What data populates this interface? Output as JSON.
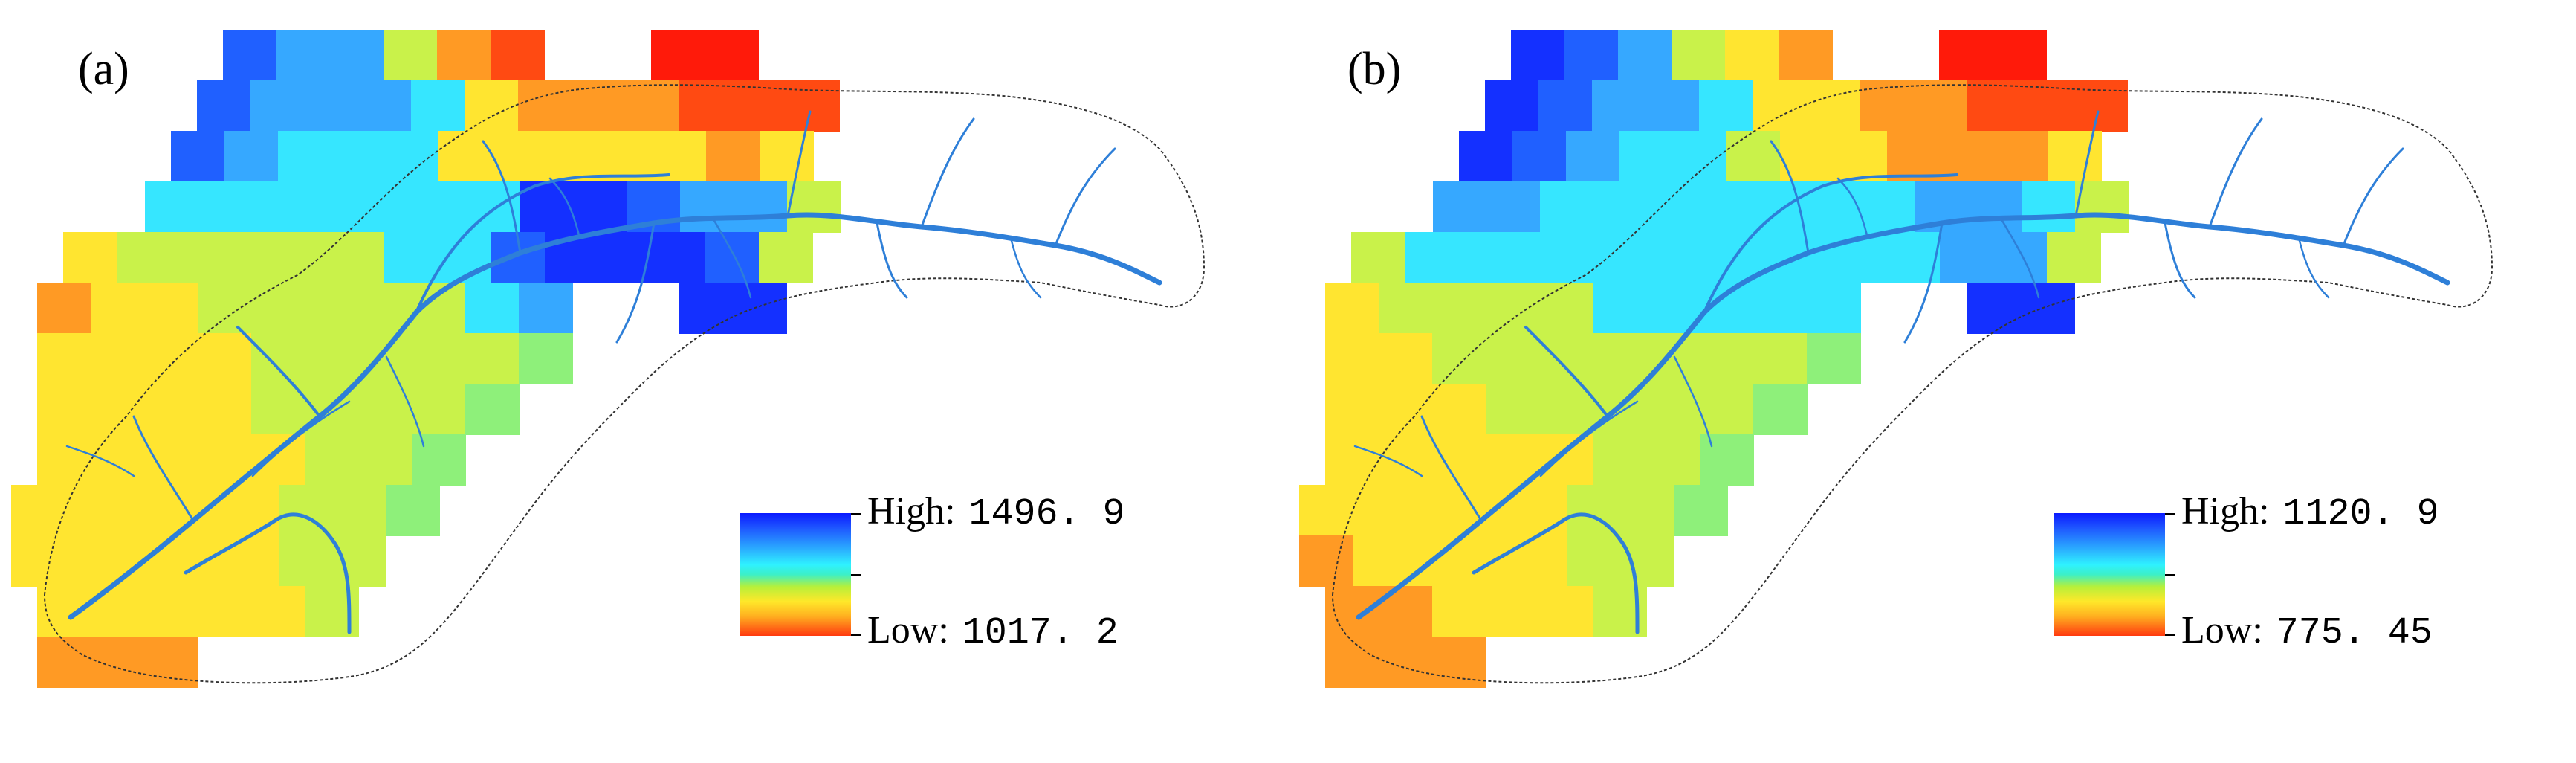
{
  "panels": [
    {
      "label": "(a)",
      "legend": {
        "high_label": "High:",
        "high_value": "1496. 9",
        "low_label": "Low:",
        "low_value": "1017. 2"
      },
      "colors": {
        "r0": [
          "blue2",
          "blue3",
          "blue3",
          "ylgn",
          "orng",
          "red1",
          "",
          "",
          "red",
          "red"
        ],
        "r1": [
          "blue2",
          "blue3",
          "blue3",
          "blue3",
          "cyan",
          "yel",
          "orng",
          "orng",
          "orng",
          "red1",
          "red1",
          "red1"
        ],
        "r2": [
          "blue2",
          "blue3",
          "cyan",
          "cyan",
          "cyan",
          "yel",
          "yel",
          "yel",
          "yel",
          "yel",
          "orng",
          "yel"
        ],
        "r3": [
          "cyan",
          "cyan",
          "cyan",
          "cyan",
          "cyan",
          "cyan",
          "cyan",
          "blue1",
          "blue1",
          "blue2",
          "blue3",
          "blue3",
          "ylgn"
        ],
        "r4": [
          "yel",
          "ylgn",
          "ylgn",
          "ylgn",
          "ylgn",
          "ylgn",
          "cyan",
          "cyan",
          "blue2",
          "blue1",
          "blue1",
          "blue1",
          "blue2",
          "ylgn"
        ],
        "r5": [
          "orng",
          "yel",
          "yel",
          "ylgn",
          "ylgn",
          "ylgn",
          "ylgn",
          "ylgn",
          "cyan",
          "blue3",
          "",
          "",
          "blue1",
          "blue1"
        ],
        "r6": [
          "yel",
          "yel",
          "yel",
          "yel",
          "ylgn",
          "ylgn",
          "ylgn",
          "ylgn",
          "ylgn",
          "grn"
        ],
        "r7": [
          "yel",
          "yel",
          "yel",
          "yel",
          "ylgn",
          "ylgn",
          "ylgn",
          "ylgn",
          "grn"
        ],
        "r8": [
          "yel",
          "yel",
          "yel",
          "yel",
          "yel",
          "ylgn",
          "ylgn",
          "grn"
        ],
        "r9": [
          "yel",
          "yel",
          "yel",
          "yel",
          "yel",
          "ylgn",
          "ylgn",
          "grn"
        ],
        "r10": [
          "yel",
          "yel",
          "yel",
          "yel",
          "yel",
          "ylgn",
          "ylgn"
        ],
        "r11": [
          "yel",
          "yel",
          "yel",
          "yel",
          "yel",
          "ylgn"
        ],
        "r12": [
          "orng",
          "orng",
          "orng"
        ]
      }
    },
    {
      "label": "(b)",
      "legend": {
        "high_label": "High:",
        "high_value": "1120. 9",
        "low_label": "Low:",
        "low_value": "775. 45"
      },
      "colors": {
        "r0": [
          "blue1",
          "blue2",
          "blue3",
          "ylgn",
          "yel",
          "orng",
          "",
          "",
          "red",
          "red"
        ],
        "r1": [
          "blue1",
          "blue2",
          "blue3",
          "blue3",
          "cyan",
          "yel",
          "yel",
          "orng",
          "orng",
          "red1",
          "red1",
          "red1"
        ],
        "r2": [
          "blue1",
          "blue2",
          "blue3",
          "cyan",
          "cyan",
          "ylgn",
          "yel",
          "yel",
          "orng",
          "orng",
          "orng",
          "yel"
        ],
        "r3": [
          "blue3",
          "blue3",
          "cyan",
          "cyan",
          "cyan",
          "cyan",
          "cyan",
          "cyan",
          "cyan",
          "blue3",
          "blue3",
          "cyan",
          "ylgn"
        ],
        "r4": [
          "ylgn",
          "cyan",
          "cyan",
          "cyan",
          "cyan",
          "cyan",
          "cyan",
          "cyan",
          "cyan",
          "cyan",
          "cyan",
          "blue3",
          "blue3",
          "ylgn"
        ],
        "r5": [
          "yel",
          "ylgn",
          "ylgn",
          "ylgn",
          "ylgn",
          "cyan",
          "cyan",
          "cyan",
          "cyan",
          "cyan",
          "",
          "",
          "blue1",
          "blue1"
        ],
        "r6": [
          "yel",
          "yel",
          "ylgn",
          "ylgn",
          "ylgn",
          "ylgn",
          "ylgn",
          "ylgn",
          "ylgn",
          "grn"
        ],
        "r7": [
          "yel",
          "yel",
          "yel",
          "ylgn",
          "ylgn",
          "ylgn",
          "ylgn",
          "ylgn",
          "grn"
        ],
        "r8": [
          "yel",
          "yel",
          "yel",
          "yel",
          "yel",
          "ylgn",
          "ylgn",
          "grn"
        ],
        "r9": [
          "yel",
          "yel",
          "yel",
          "yel",
          "yel",
          "ylgn",
          "ylgn",
          "grn"
        ],
        "r10": [
          "orng",
          "yel",
          "yel",
          "yel",
          "yel",
          "ylgn",
          "ylgn"
        ],
        "r11": [
          "orng",
          "orng",
          "yel",
          "yel",
          "yel",
          "ylgn"
        ],
        "r12": [
          "orng",
          "orng",
          "orng"
        ]
      }
    }
  ],
  "palette": {
    "red": "#ff1a0a",
    "red1": "#ff4a12",
    "orng": "#ff9a24",
    "yel": "#ffe530",
    "ylgn": "#c9f24a",
    "grn": "#8ef07a",
    "cyan": "#36e6ff",
    "blue3": "#36a8ff",
    "blue2": "#2060ff",
    "blue1": "#1430ff"
  }
}
